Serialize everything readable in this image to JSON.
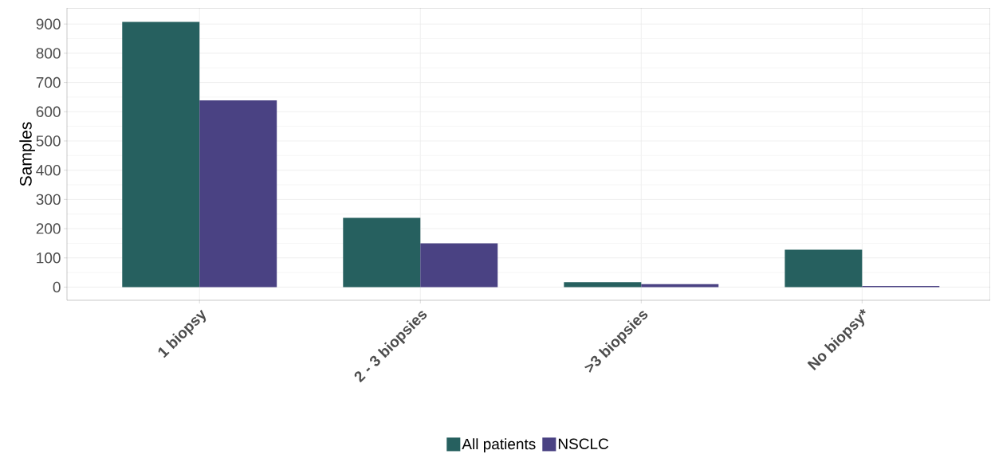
{
  "chart_data": {
    "type": "bar",
    "ylabel": "Samples",
    "categories": [
      "1 biopsy",
      "2 - 3 biopsies",
      ">3 biopsies",
      "No biopsy*"
    ],
    "series": [
      {
        "name": "All patients",
        "color": "#26605f",
        "values": [
          907,
          237,
          17,
          128
        ]
      },
      {
        "name": "NSCLC",
        "color": "#4a4283",
        "values": [
          639,
          150,
          10,
          4
        ]
      }
    ],
    "ylim": [
      -45,
      955
    ],
    "yticks": [
      0,
      100,
      200,
      300,
      400,
      500,
      600,
      700,
      800,
      900
    ],
    "grid": true,
    "legend": "bottom"
  }
}
